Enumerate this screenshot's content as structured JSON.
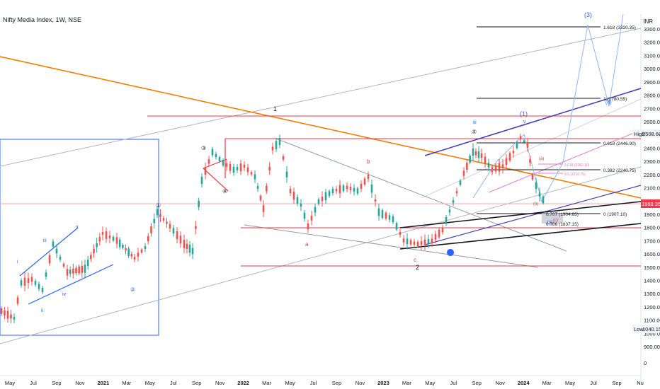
{
  "header": {
    "title": "Nifty Media Index, 1W, NSE",
    "currency": "INR"
  },
  "chart_data": {
    "type": "candlestick",
    "title": "Nifty Media Index, 1W, NSE",
    "x_labels": [
      "May",
      "Jul",
      "Sep",
      "Nov",
      "2021",
      "Mar",
      "May",
      "Jul",
      "Sep",
      "Nov",
      "2022",
      "Mar",
      "May",
      "Jul",
      "Sep",
      "Nov",
      "2023",
      "Mar",
      "May",
      "Jul",
      "Sep",
      "Nov",
      "2024",
      "Mar",
      "May",
      "Jul",
      "Sep",
      "Nu"
    ],
    "y_ticks": [
      "3300.00",
      "3200.00",
      "3100.00",
      "3000.00",
      "2900.00",
      "2800.00",
      "2700.00",
      "2600.00",
      "2500.00",
      "2400.00",
      "2300.00",
      "2200.00",
      "2100.00",
      "2000.00",
      "1900.00",
      "1800.00",
      "1700.00",
      "1600.00",
      "1500.00",
      "1400.00",
      "1300.00",
      "1200.00",
      "1100.00",
      "1000.00",
      "900.00",
      "0"
    ],
    "current_price": "1988.35",
    "high": {
      "label": "High",
      "value": "2508.60"
    },
    "low": {
      "label": "Low",
      "value": "1040.15"
    },
    "fib_levels": [
      {
        "label": "1.618 (3320.35)",
        "value": 3320.35
      },
      {
        "label": "1 (2780.55)",
        "value": 2780.55
      },
      {
        "label": "0.618 (2446.90)",
        "value": 2446.9
      },
      {
        "label": "0.382 (2240.75)",
        "value": 2240.75
      },
      {
        "label": "0.618 (2282.10)",
        "value": 2282.1
      },
      {
        "label": "0.5 (2210.75)",
        "value": 2210.75
      },
      {
        "label": "0.707 (1904.65)",
        "value": 1904.65
      },
      {
        "label": "0 (1907.10)",
        "value": 1907.1
      },
      {
        "label": "0.786 (1837.15)",
        "value": 1837.15
      }
    ],
    "wave_labels": [
      "1",
      "2",
      "(1)",
      "(2)",
      "(3)",
      "(4)",
      "iii",
      "v",
      "i",
      "ii",
      "iii",
      "iv",
      "v",
      "①",
      "②",
      "③",
      "④",
      "⑤",
      "a",
      "b",
      "c",
      "(a)",
      "(b)",
      "(c)"
    ],
    "colors": {
      "up": "#26a69a",
      "down": "#ef5350",
      "bull": "#2962ff",
      "bear": "#f23645",
      "trend": "#f57c00",
      "price_tag": "#f23645"
    }
  }
}
